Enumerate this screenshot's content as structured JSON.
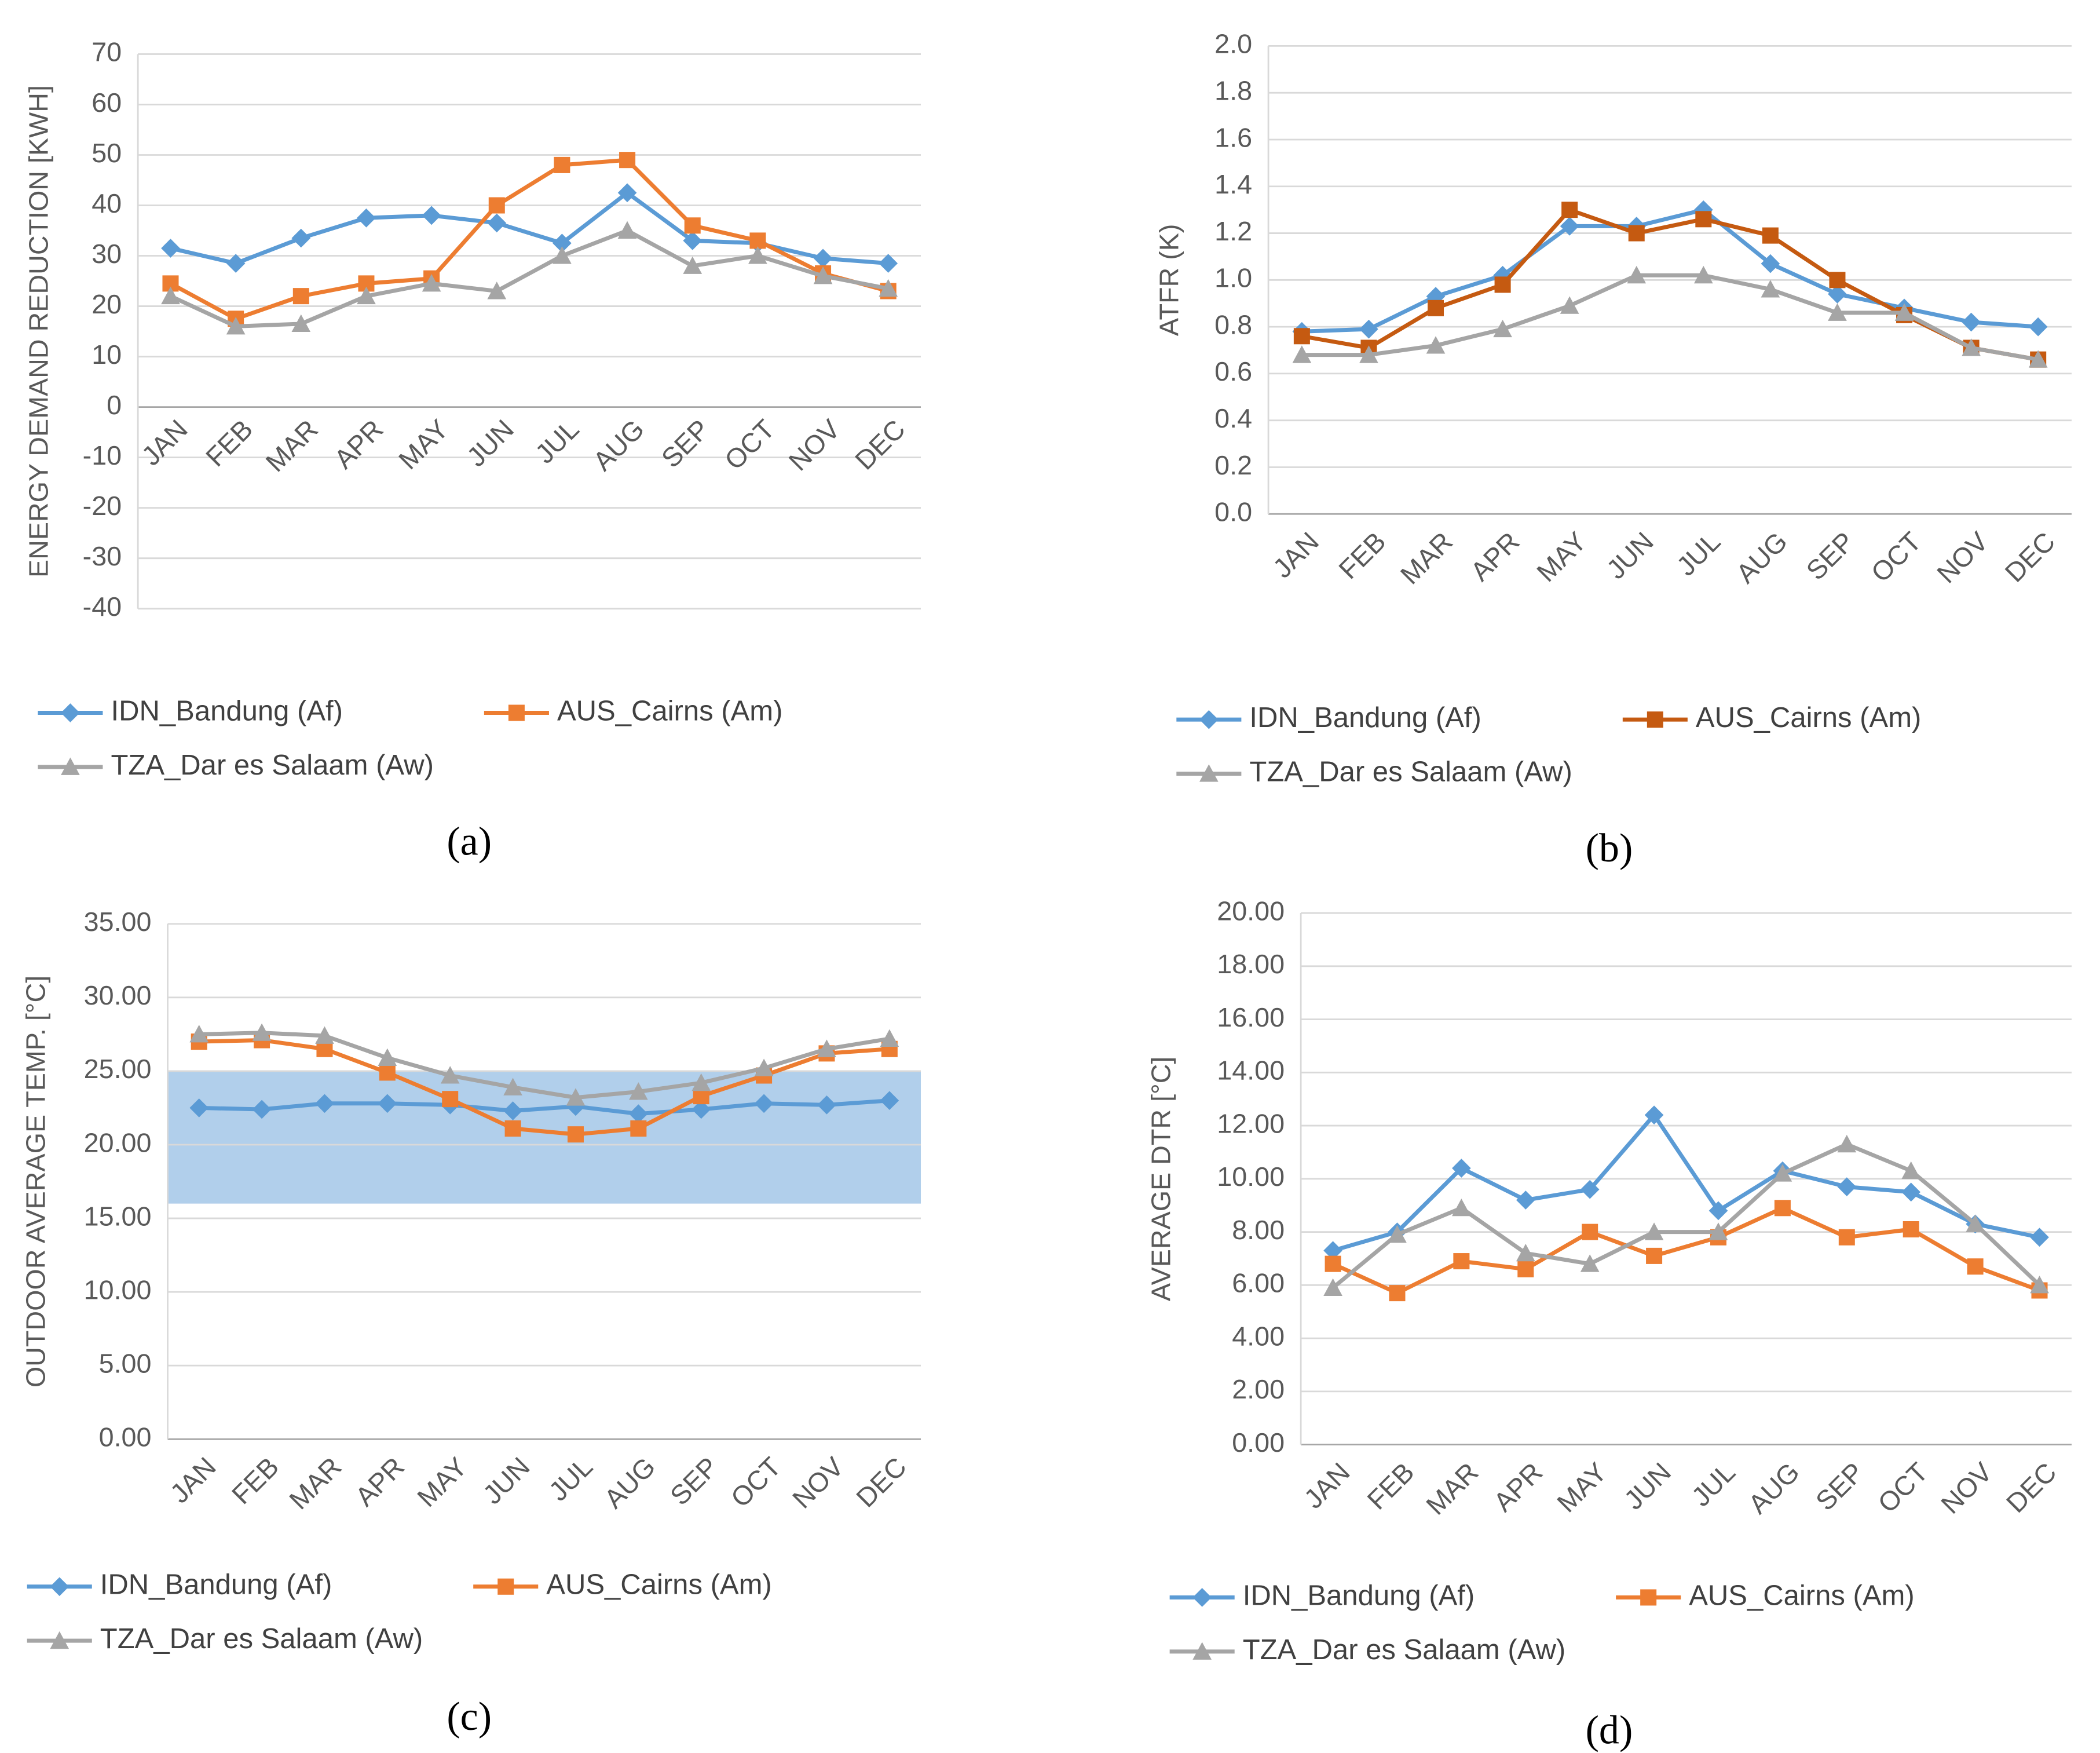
{
  "chart_data": [
    {
      "type": "line",
      "caption": "(a)",
      "ylabel": "ENERGY DEMAND REDUCTION [KWH]",
      "categories": [
        "JAN",
        "FEB",
        "MAR",
        "APR",
        "MAY",
        "JUN",
        "JUL",
        "AUG",
        "SEP",
        "OCT",
        "NOV",
        "DEC"
      ],
      "ylim": [
        -40,
        70
      ],
      "yticks": [
        -40,
        -30,
        -20,
        -10,
        0,
        10,
        20,
        30,
        40,
        50,
        60,
        70
      ],
      "grid": true,
      "series": [
        {
          "name": "IDN_Bandung (Af)",
          "color": "#5b9bd5",
          "marker": "diamond",
          "values": [
            31.5,
            28.5,
            33.5,
            37.5,
            38,
            36.5,
            32.5,
            42.5,
            33,
            32.5,
            29.5,
            28.5
          ]
        },
        {
          "name": "AUS_Cairns (Am)",
          "color": "#ed7d31",
          "marker": "square",
          "values": [
            24.5,
            17.5,
            22,
            24.5,
            25.5,
            40,
            48,
            49,
            36,
            33,
            26.5,
            23
          ]
        },
        {
          "name": "TZA_Dar es Salaam (Aw)",
          "color": "#a5a5a5",
          "marker": "triangle",
          "values": [
            22,
            16,
            16.5,
            22,
            24.5,
            23,
            30,
            35,
            28,
            30,
            26,
            23.5
          ]
        }
      ]
    },
    {
      "type": "line",
      "caption": "(b)",
      "ylabel": "ATFR (K)",
      "categories": [
        "JAN",
        "FEB",
        "MAR",
        "APR",
        "MAY",
        "JUN",
        "JUL",
        "AUG",
        "SEP",
        "OCT",
        "NOV",
        "DEC"
      ],
      "ylim": [
        0,
        2
      ],
      "yticks": [
        {
          "value": 0,
          "label": "0.0"
        },
        0.2,
        0.4,
        0.6,
        0.8,
        {
          "value": 1,
          "label": "1.0"
        },
        1.2,
        1.4,
        1.6,
        1.8,
        {
          "value": 2,
          "label": "2.0"
        }
      ],
      "grid": true,
      "series": [
        {
          "name": "IDN_Bandung (Af)",
          "color": "#5b9bd5",
          "marker": "diamond",
          "values": [
            0.78,
            0.79,
            0.93,
            1.02,
            1.23,
            1.23,
            1.3,
            1.07,
            0.94,
            0.88,
            0.82,
            0.8
          ]
        },
        {
          "name": "AUS_Cairns (Am)",
          "color": "#c55a11",
          "marker": "square",
          "values": [
            0.76,
            0.71,
            0.88,
            0.98,
            1.3,
            1.2,
            1.26,
            1.19,
            1.0,
            0.85,
            0.71,
            0.66
          ]
        },
        {
          "name": "TZA_Dar es Salaam (Aw)",
          "color": "#a5a5a5",
          "marker": "triangle",
          "values": [
            0.68,
            0.68,
            0.72,
            0.79,
            0.89,
            1.02,
            1.02,
            0.96,
            0.86,
            0.86,
            0.71,
            0.66
          ]
        }
      ]
    },
    {
      "type": "line",
      "caption": "(c)",
      "ylabel": "OUTDOOR AVERAGE TEMP. [°C]",
      "categories": [
        "JAN",
        "FEB",
        "MAR",
        "APR",
        "MAY",
        "JUN",
        "JUL",
        "AUG",
        "SEP",
        "OCT",
        "NOV",
        "DEC"
      ],
      "ylim": [
        0,
        35
      ],
      "yticks": [
        {
          "value": 0,
          "label": "0.00"
        },
        {
          "value": 5,
          "label": "5.00"
        },
        {
          "value": 10,
          "label": "10.00"
        },
        {
          "value": 15,
          "label": "15.00"
        },
        {
          "value": 20,
          "label": "20.00"
        },
        {
          "value": 25,
          "label": "25.00"
        },
        {
          "value": 30,
          "label": "30.00"
        },
        {
          "value": 35,
          "label": "35.00"
        }
      ],
      "grid": true,
      "band": [
        16,
        25
      ],
      "band_color": "#9dc3e6",
      "series": [
        {
          "name": "IDN_Bandung (Af)",
          "color": "#5b9bd5",
          "marker": "diamond",
          "values": [
            22.5,
            22.4,
            22.8,
            22.8,
            22.7,
            22.3,
            22.6,
            22.1,
            22.4,
            22.8,
            22.7,
            23.0
          ]
        },
        {
          "name": "AUS_Cairns (Am)",
          "color": "#ed7d31",
          "marker": "square",
          "values": [
            27.0,
            27.1,
            26.5,
            24.9,
            23.1,
            21.1,
            20.7,
            21.1,
            23.3,
            24.7,
            26.2,
            26.5
          ]
        },
        {
          "name": "TZA_Dar es Salaam (Aw)",
          "color": "#a5a5a5",
          "marker": "triangle",
          "values": [
            27.5,
            27.6,
            27.4,
            25.9,
            24.7,
            23.9,
            23.2,
            23.6,
            24.2,
            25.2,
            26.5,
            27.2
          ]
        }
      ]
    },
    {
      "type": "line",
      "caption": "(d)",
      "ylabel": "AVERAGE DTR [°C]",
      "categories": [
        "JAN",
        "FEB",
        "MAR",
        "APR",
        "MAY",
        "JUN",
        "JUL",
        "AUG",
        "SEP",
        "OCT",
        "NOV",
        "DEC"
      ],
      "ylim": [
        0,
        20
      ],
      "yticks": [
        {
          "value": 0,
          "label": "0.00"
        },
        {
          "value": 2,
          "label": "2.00"
        },
        {
          "value": 4,
          "label": "4.00"
        },
        {
          "value": 6,
          "label": "6.00"
        },
        {
          "value": 8,
          "label": "8.00"
        },
        {
          "value": 10,
          "label": "10.00"
        },
        {
          "value": 12,
          "label": "12.00"
        },
        {
          "value": 14,
          "label": "14.00"
        },
        {
          "value": 16,
          "label": "16.00"
        },
        {
          "value": 18,
          "label": "18.00"
        },
        {
          "value": 20,
          "label": "20.00"
        }
      ],
      "grid": true,
      "series": [
        {
          "name": "IDN_Bandung (Af)",
          "color": "#5b9bd5",
          "marker": "diamond",
          "values": [
            7.3,
            8.0,
            10.4,
            9.2,
            9.6,
            12.4,
            8.8,
            10.3,
            9.7,
            9.5,
            8.3,
            7.8
          ]
        },
        {
          "name": "AUS_Cairns (Am)",
          "color": "#ed7d31",
          "marker": "square",
          "values": [
            6.8,
            5.7,
            6.9,
            6.6,
            8.0,
            7.1,
            7.8,
            8.9,
            7.8,
            8.1,
            6.7,
            5.8
          ]
        },
        {
          "name": "TZA_Dar es Salaam (Aw)",
          "color": "#a5a5a5",
          "marker": "triangle",
          "values": [
            5.9,
            7.9,
            8.9,
            7.2,
            6.8,
            8.0,
            8.0,
            10.2,
            11.3,
            10.3,
            8.3,
            6.0
          ]
        }
      ]
    }
  ]
}
